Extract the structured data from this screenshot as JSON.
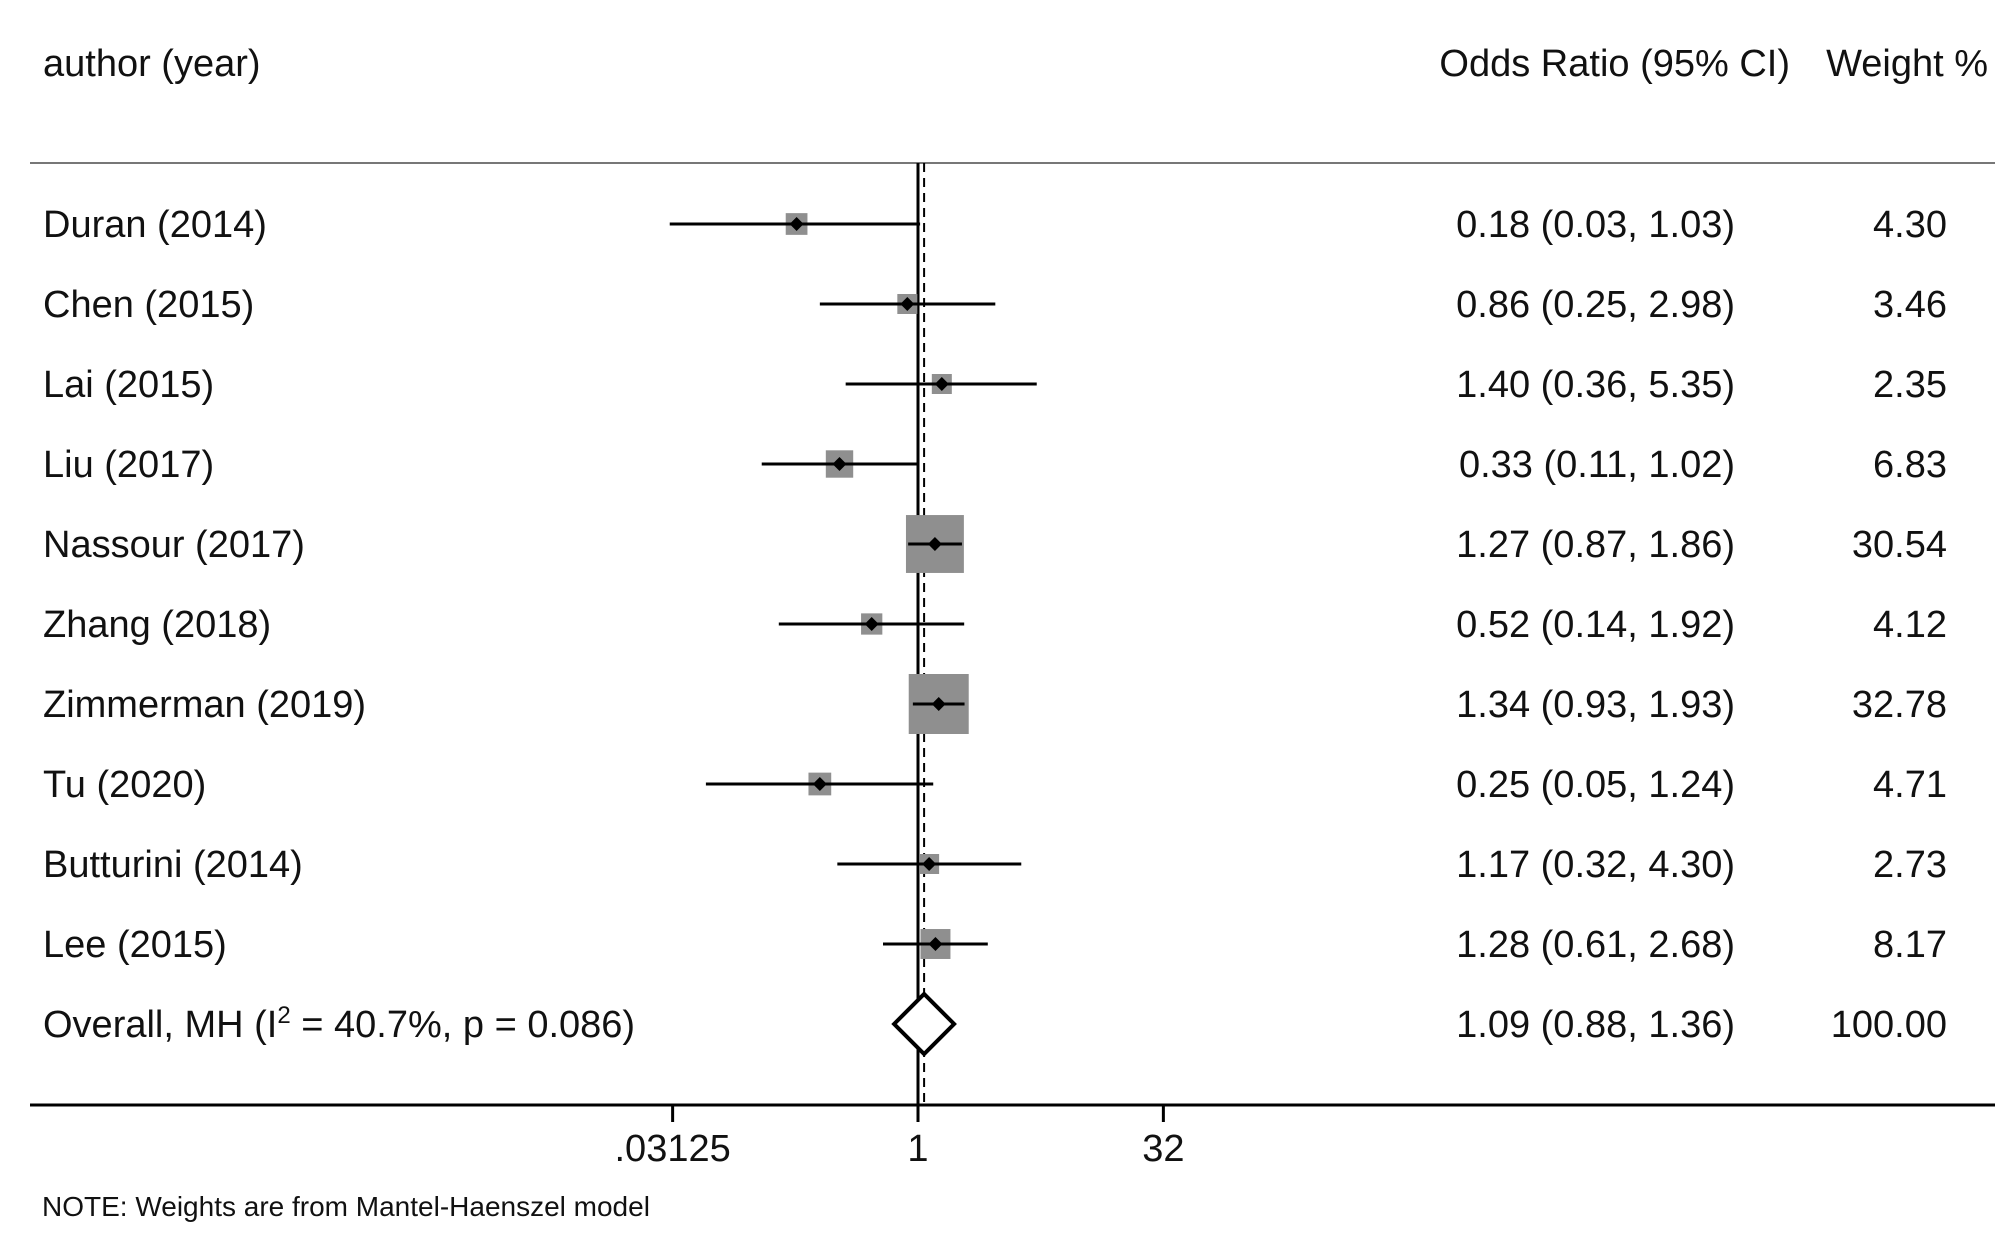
{
  "chart_data": {
    "type": "forest",
    "header": {
      "study": "author (year)",
      "effect": "Odds Ratio (95% CI)",
      "weight": "Weight %"
    },
    "studies": [
      {
        "label": "Duran (2014)",
        "or": 0.18,
        "lo": 0.03,
        "hi": 1.03,
        "ci_text": "0.18 (0.03, 1.03)",
        "weight": 4.3,
        "weight_text": "4.30"
      },
      {
        "label": "Chen (2015)",
        "or": 0.86,
        "lo": 0.25,
        "hi": 2.98,
        "ci_text": "0.86 (0.25, 2.98)",
        "weight": 3.46,
        "weight_text": "3.46"
      },
      {
        "label": "Lai (2015)",
        "or": 1.4,
        "lo": 0.36,
        "hi": 5.35,
        "ci_text": "1.40 (0.36, 5.35)",
        "weight": 2.35,
        "weight_text": "2.35"
      },
      {
        "label": "Liu (2017)",
        "or": 0.33,
        "lo": 0.11,
        "hi": 1.02,
        "ci_text": "0.33 (0.11, 1.02)",
        "weight": 6.83,
        "weight_text": "6.83"
      },
      {
        "label": "Nassour (2017)",
        "or": 1.27,
        "lo": 0.87,
        "hi": 1.86,
        "ci_text": "1.27 (0.87, 1.86)",
        "weight": 30.54,
        "weight_text": "30.54"
      },
      {
        "label": "Zhang (2018)",
        "or": 0.52,
        "lo": 0.14,
        "hi": 1.92,
        "ci_text": "0.52 (0.14, 1.92)",
        "weight": 4.12,
        "weight_text": "4.12"
      },
      {
        "label": "Zimmerman (2019)",
        "or": 1.34,
        "lo": 0.93,
        "hi": 1.93,
        "ci_text": "1.34 (0.93, 1.93)",
        "weight": 32.78,
        "weight_text": "32.78"
      },
      {
        "label": "Tu (2020)",
        "or": 0.25,
        "lo": 0.05,
        "hi": 1.24,
        "ci_text": "0.25 (0.05, 1.24)",
        "weight": 4.71,
        "weight_text": "4.71"
      },
      {
        "label": "Butturini (2014)",
        "or": 1.17,
        "lo": 0.32,
        "hi": 4.3,
        "ci_text": "1.17 (0.32, 4.30)",
        "weight": 2.73,
        "weight_text": "2.73"
      },
      {
        "label": "Lee (2015)",
        "or": 1.28,
        "lo": 0.61,
        "hi": 2.68,
        "ci_text": "1.28 (0.61, 2.68)",
        "weight": 8.17,
        "weight_text": "8.17"
      }
    ],
    "overall": {
      "label_prefix": "Overall, MH (I",
      "label_sup": "2",
      "label_suffix": " = 40.7%, p = 0.086)",
      "or": 1.09,
      "lo": 0.88,
      "hi": 1.36,
      "ci_text": "1.09 (0.88, 1.36)",
      "weight": 100.0,
      "weight_text": "100.00"
    },
    "xaxis": {
      "scale": "log",
      "ticks": [
        0.03125,
        1,
        32
      ],
      "tick_labels": [
        ".03125",
        "1",
        "32"
      ],
      "null_line": 1
    },
    "note": "NOTE: Weights are from Mantel-Haenszel model"
  }
}
